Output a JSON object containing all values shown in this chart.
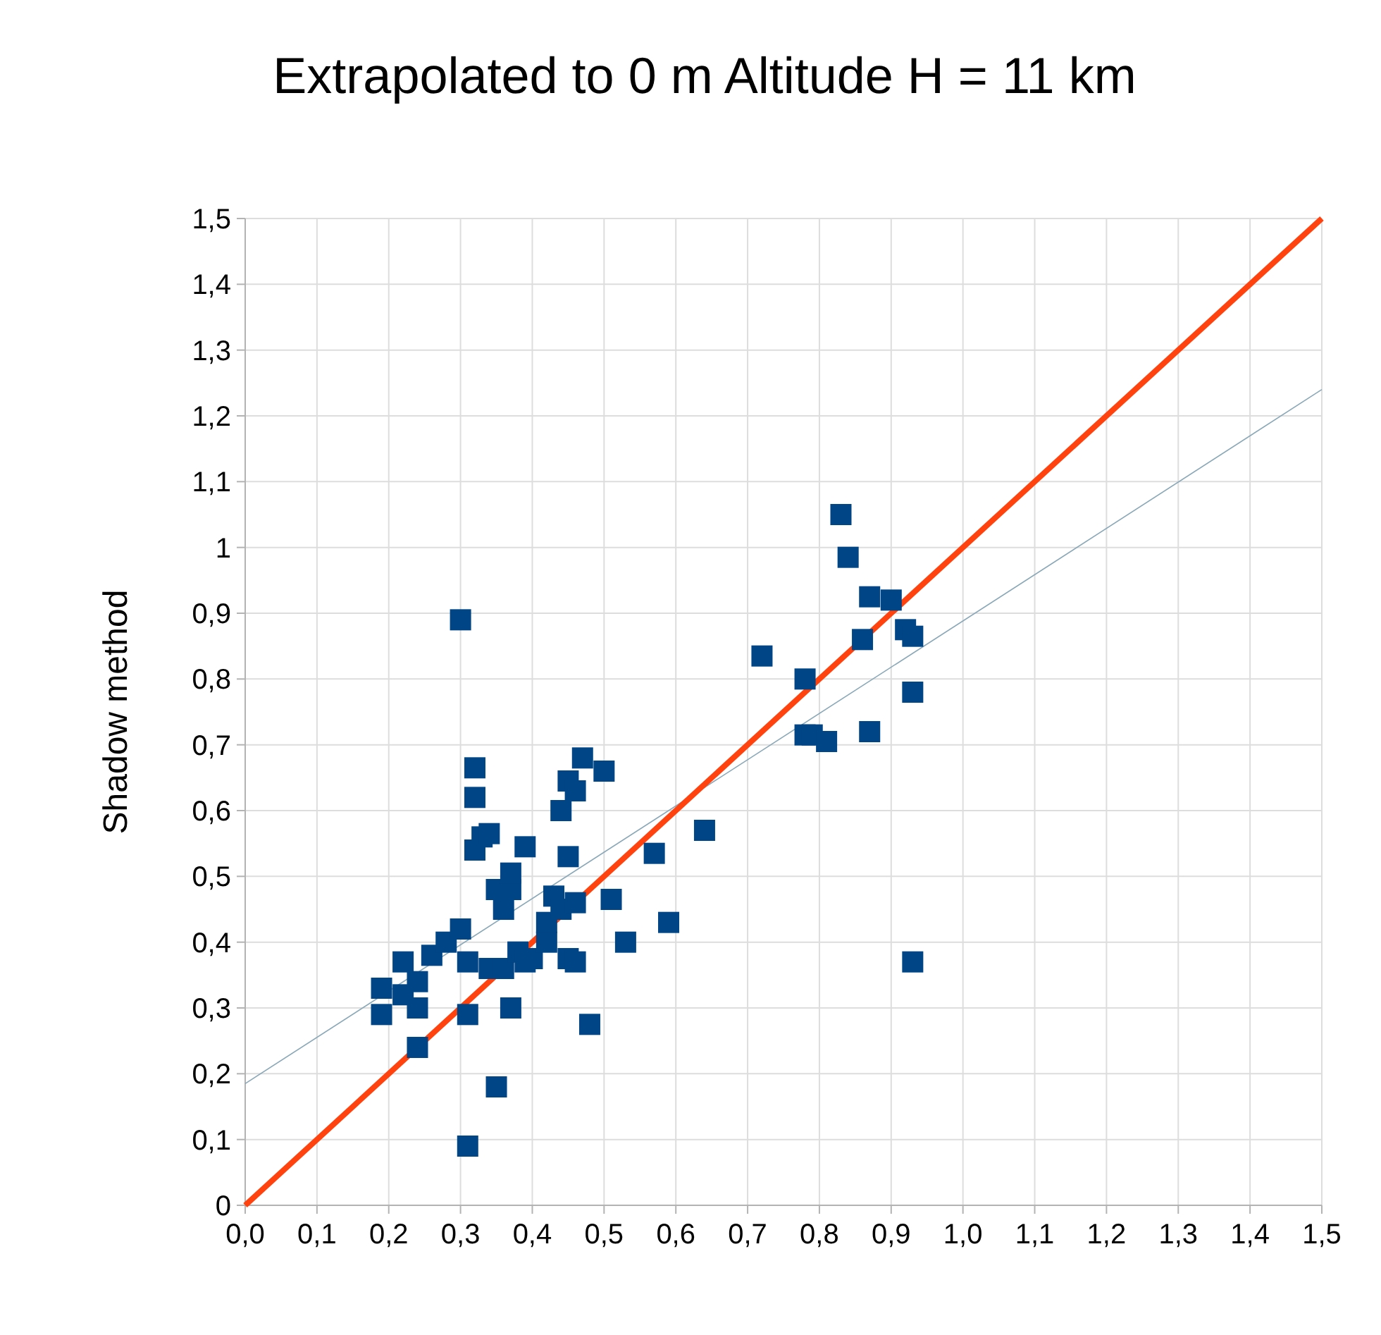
{
  "chart_data": {
    "type": "scatter",
    "title": "Extrapolated to 0 m Altitude H = 11 km",
    "ylabel": "Shadow method",
    "grid": true,
    "xlim": [
      0,
      1.5
    ],
    "ylim": [
      0,
      1.5
    ],
    "xticks": [
      {
        "value": 0,
        "label": "0,0"
      },
      {
        "value": 0.1,
        "label": "0,1"
      },
      {
        "value": 0.2,
        "label": "0,2"
      },
      {
        "value": 0.3,
        "label": "0,3"
      },
      {
        "value": 0.4,
        "label": "0,4"
      },
      {
        "value": 0.5,
        "label": "0,5"
      },
      {
        "value": 0.6,
        "label": "0,6"
      },
      {
        "value": 0.7,
        "label": "0,7"
      },
      {
        "value": 0.8,
        "label": "0,8"
      },
      {
        "value": 0.9,
        "label": "0,9"
      },
      {
        "value": 1,
        "label": "1,0"
      },
      {
        "value": 1.1,
        "label": "1,1"
      },
      {
        "value": 1.2,
        "label": "1,2"
      },
      {
        "value": 1.3,
        "label": "1,3"
      },
      {
        "value": 1.4,
        "label": "1,4"
      },
      {
        "value": 1.5,
        "label": "1,5"
      }
    ],
    "yticks": [
      0,
      {
        "value": 0.1,
        "label": "0,1"
      },
      {
        "value": 0.2,
        "label": "0,2"
      },
      {
        "value": 0.3,
        "label": "0,3"
      },
      {
        "value": 0.4,
        "label": "0,4"
      },
      {
        "value": 0.5,
        "label": "0,5"
      },
      {
        "value": 0.6,
        "label": "0,6"
      },
      {
        "value": 0.7,
        "label": "0,7"
      },
      {
        "value": 0.8,
        "label": "0,8"
      },
      {
        "value": 0.9,
        "label": "0,9"
      },
      1,
      {
        "value": 1.1,
        "label": "1,1"
      },
      {
        "value": 1.2,
        "label": "1,2"
      },
      {
        "value": 1.3,
        "label": "1,3"
      },
      {
        "value": 1.4,
        "label": "1,4"
      },
      {
        "value": 1.5,
        "label": "1,5"
      }
    ],
    "series": [
      {
        "type": "line",
        "color": "#8aa8b8",
        "x": [
          0,
          1.5
        ],
        "values": [
          0.185,
          1.24
        ]
      },
      {
        "type": "line",
        "color": "#ff420e",
        "x": [
          0,
          1.5
        ],
        "values": [
          0,
          1.5
        ]
      },
      {
        "color": "#004586",
        "marker": "square",
        "x": [
          0.19,
          0.19,
          0.22,
          0.22,
          0.24,
          0.24,
          0.24,
          0.26,
          0.28,
          0.3,
          0.3,
          0.31,
          0.31,
          0.31,
          0.32,
          0.32,
          0.32,
          0.33,
          0.34,
          0.34,
          0.35,
          0.35,
          0.36,
          0.36,
          0.37,
          0.37,
          0.37,
          0.38,
          0.39,
          0.39,
          0.4,
          0.42,
          0.42,
          0.43,
          0.44,
          0.44,
          0.45,
          0.45,
          0.45,
          0.46,
          0.46,
          0.46,
          0.47,
          0.48,
          0.5,
          0.51,
          0.53,
          0.57,
          0.59,
          0.64,
          0.72,
          0.78,
          0.78,
          0.79,
          0.81,
          0.83,
          0.84,
          0.86,
          0.87,
          0.87,
          0.9,
          0.92,
          0.93,
          0.93,
          0.93
        ],
        "values": [
          0.33,
          0.29,
          0.37,
          0.32,
          0.34,
          0.3,
          0.24,
          0.38,
          0.4,
          0.42,
          0.89,
          0.29,
          0.37,
          0.09,
          0.665,
          0.62,
          0.54,
          0.56,
          0.565,
          0.36,
          0.18,
          0.48,
          0.36,
          0.45,
          0.48,
          0.505,
          0.3,
          0.385,
          0.37,
          0.545,
          0.375,
          0.4,
          0.43,
          0.47,
          0.45,
          0.6,
          0.375,
          0.53,
          0.645,
          0.46,
          0.37,
          0.63,
          0.68,
          0.275,
          0.66,
          0.465,
          0.4,
          0.535,
          0.43,
          0.57,
          0.835,
          0.8,
          0.715,
          0.715,
          0.705,
          1.05,
          0.985,
          0.86,
          0.925,
          0.72,
          0.92,
          0.875,
          0.865,
          0.78,
          0.37
        ]
      }
    ]
  }
}
